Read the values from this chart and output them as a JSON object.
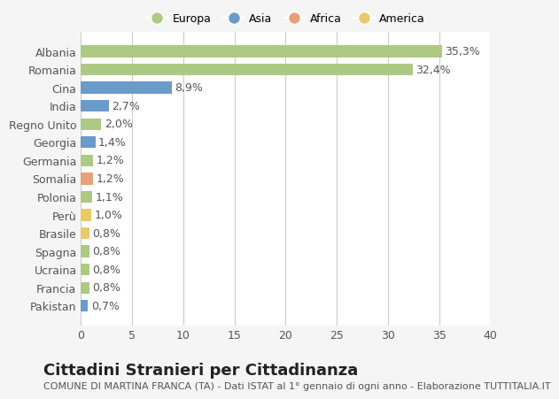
{
  "categories": [
    "Albania",
    "Romania",
    "Cina",
    "India",
    "Regno Unito",
    "Georgia",
    "Germania",
    "Somalia",
    "Polonia",
    "Perù",
    "Brasile",
    "Spagna",
    "Ucraina",
    "Francia",
    "Pakistan"
  ],
  "values": [
    35.3,
    32.4,
    8.9,
    2.7,
    2.0,
    1.4,
    1.2,
    1.2,
    1.1,
    1.0,
    0.8,
    0.8,
    0.8,
    0.8,
    0.7
  ],
  "labels": [
    "35,3%",
    "32,4%",
    "8,9%",
    "2,7%",
    "2,0%",
    "1,4%",
    "1,2%",
    "1,2%",
    "1,1%",
    "1,0%",
    "0,8%",
    "0,8%",
    "0,8%",
    "0,8%",
    "0,7%"
  ],
  "colors": [
    "#aec983",
    "#aec983",
    "#6b9bc8",
    "#6b9bc8",
    "#aec983",
    "#6b9bc8",
    "#aec983",
    "#e8a07a",
    "#aec983",
    "#e8c96b",
    "#e8c96b",
    "#aec983",
    "#aec983",
    "#aec983",
    "#6b9bc8"
  ],
  "legend_labels": [
    "Europa",
    "Asia",
    "Africa",
    "America"
  ],
  "legend_colors": [
    "#aec983",
    "#6b9bc8",
    "#e8a07a",
    "#e8c96b"
  ],
  "title": "Cittadini Stranieri per Cittadinanza",
  "subtitle": "COMUNE DI MARTINA FRANCA (TA) - Dati ISTAT al 1° gennaio di ogni anno - Elaborazione TUTTITALIA.IT",
  "xlim": [
    0,
    40
  ],
  "xticks": [
    0,
    5,
    10,
    15,
    20,
    25,
    30,
    35,
    40
  ],
  "background_color": "#f5f5f5",
  "bar_background": "#ffffff",
  "grid_color": "#cccccc",
  "title_fontsize": 13,
  "subtitle_fontsize": 8,
  "tick_fontsize": 9,
  "label_fontsize": 9
}
